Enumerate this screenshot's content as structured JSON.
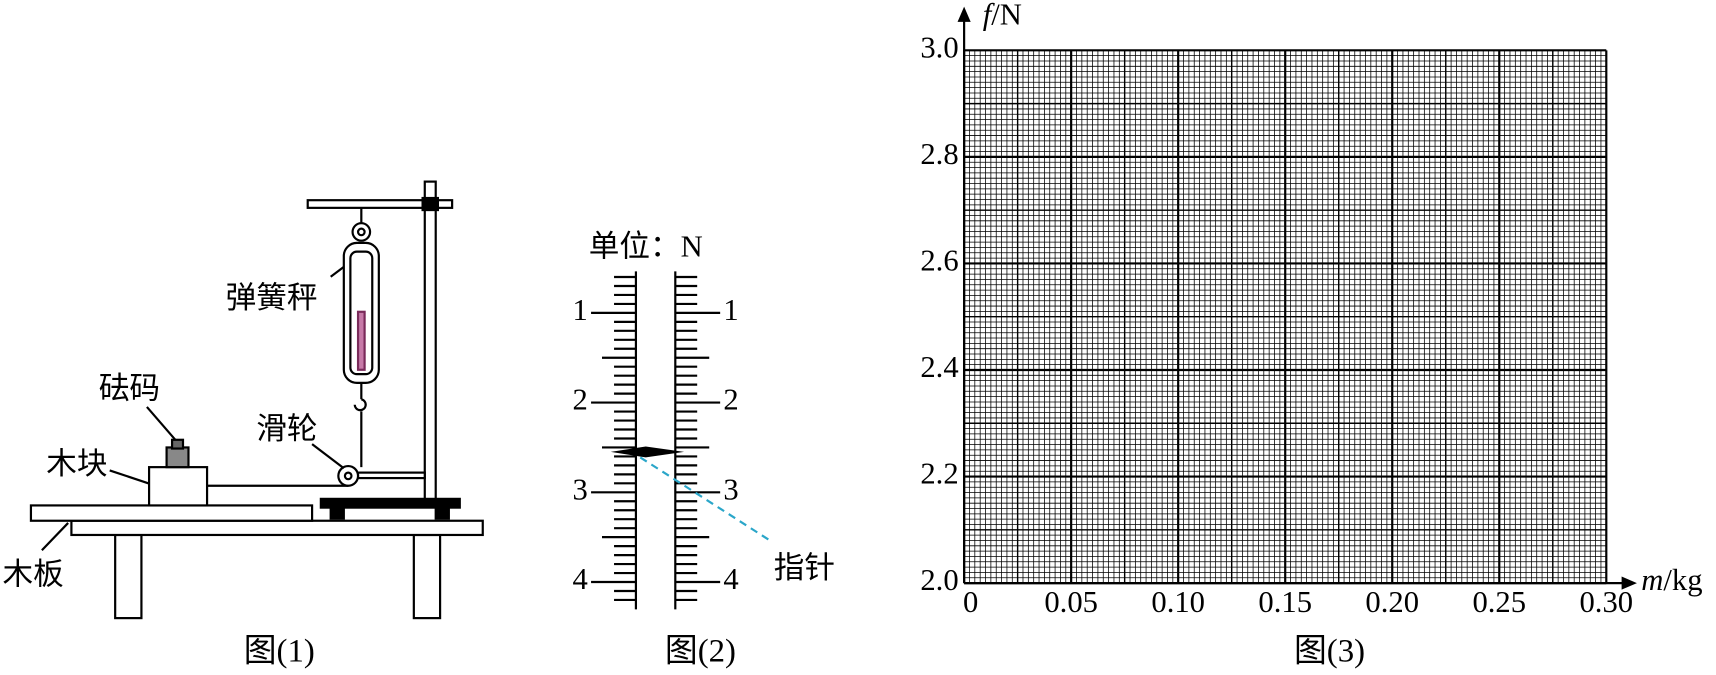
{
  "figure1": {
    "caption": "图(1)",
    "labels": {
      "spring_scale": "弹簧秤",
      "weight": "砝码",
      "pulley": "滑轮",
      "block": "木块",
      "board": "木板"
    }
  },
  "figure2": {
    "caption": "图(2)",
    "unit": "单位：N",
    "ticks": [
      1,
      2,
      3,
      4
    ],
    "pointer_value": 2.55,
    "pointer_label": "指针"
  },
  "figure3": {
    "caption": "图(3)",
    "x_axis": {
      "symbol": "m",
      "unit": "/kg"
    },
    "y_axis": {
      "symbol": "f",
      "unit": "/N"
    },
    "xlim": [
      0,
      0.3
    ],
    "ylim": [
      2,
      3
    ],
    "xticks": [
      0,
      0.05,
      {
        "value": 0.1,
        "label": "0.10"
      },
      0.15,
      {
        "value": 0.2,
        "label": "0.20"
      },
      0.25,
      {
        "value": 0.3,
        "label": "0.30"
      }
    ],
    "yticks": [
      {
        "value": 2,
        "label": "2.0"
      },
      2.2,
      2.4,
      2.6,
      2.8,
      {
        "value": 3,
        "label": "3.0"
      }
    ]
  }
}
